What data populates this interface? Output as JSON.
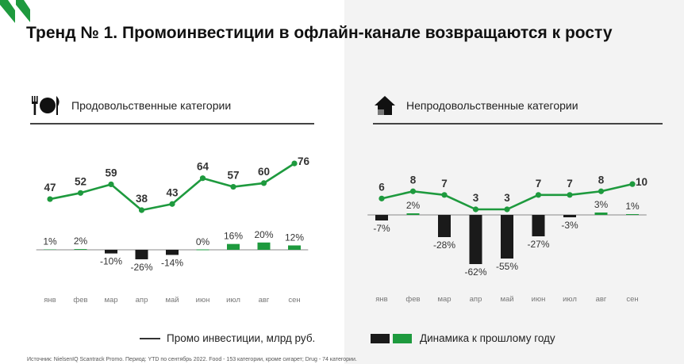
{
  "title": "Тренд № 1. Промоинвестиции в офлайн-канале возвращаются к росту",
  "colors": {
    "line": "#1e9a3e",
    "positive": "#1e9a3e",
    "negative": "#1a1a1a",
    "brand": "#1e9a3e"
  },
  "icons": {
    "left": "cutlery-plate-icon",
    "right": "house-icon"
  },
  "chart_data": [
    {
      "type": "line+bar",
      "title": "Продовольственные категории",
      "categories": [
        "янв",
        "фев",
        "мар",
        "апр",
        "май",
        "июн",
        "июл",
        "авг",
        "сен"
      ],
      "series": [
        {
          "name": "Промо инвестиции, млрд руб.",
          "type": "line",
          "values": [
            47,
            52,
            59,
            38,
            43,
            64,
            57,
            60,
            76
          ],
          "labels": [
            "47",
            "52",
            "59",
            "38",
            "43",
            "64",
            "57",
            "60",
            "76"
          ]
        },
        {
          "name": "Динамика к прошлому году",
          "type": "bar",
          "values": [
            1,
            2,
            -10,
            -26,
            -14,
            0,
            16,
            20,
            12
          ],
          "labels": [
            "1%",
            "2%",
            "-10%",
            "-26%",
            "-14%",
            "0%",
            "16%",
            "20%",
            "12%"
          ]
        }
      ]
    },
    {
      "type": "line+bar",
      "title": "Непродовольственные категории",
      "categories": [
        "янв",
        "фев",
        "мар",
        "апр",
        "май",
        "июн",
        "июл",
        "авг",
        "сен"
      ],
      "series": [
        {
          "name": "Промо инвестиции, млрд руб.",
          "type": "line",
          "values": [
            6,
            8,
            7,
            3,
            3,
            7,
            7,
            8,
            10
          ],
          "labels": [
            "6",
            "8",
            "7",
            "3",
            "3",
            "7",
            "7",
            "8",
            "10"
          ]
        },
        {
          "name": "Динамика к прошлому году",
          "type": "bar",
          "values": [
            -7,
            2,
            -28,
            -62,
            -55,
            -27,
            -3,
            3,
            1
          ],
          "labels": [
            "-7%",
            "2%",
            "-28%",
            "-62%",
            "-55%",
            "-27%",
            "-3%",
            "3%",
            "1%"
          ]
        }
      ]
    }
  ],
  "legend": {
    "line_label": "Промо инвестиции, млрд руб.",
    "bar_label": "Динамика к прошлому году"
  },
  "source": "Источник: NielsenIQ Scantrack Promo. Период: YTD по сентябрь 2022. Food - 153 категории, кроме сигарет; Drug - 74 категории."
}
